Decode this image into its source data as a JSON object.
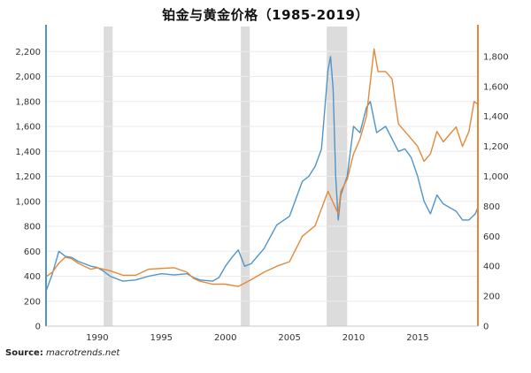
{
  "chart_data": {
    "type": "line",
    "title": "铂金与黄金价格（1985-2019）",
    "xlabel": "",
    "ylabel": "",
    "x_range": [
      1986.0,
      2019.7
    ],
    "x_ticks": [
      1990,
      1995,
      2000,
      2005,
      2010,
      2015
    ],
    "left_axis": {
      "range": [
        0,
        2400
      ],
      "ticks": [
        0,
        200,
        400,
        600,
        800,
        1000,
        1200,
        1400,
        1600,
        1800,
        2000,
        2200
      ],
      "tick_labels": [
        "0",
        "200",
        "400",
        "600",
        "800",
        "1,000",
        "1,200",
        "1,400",
        "1,600",
        "1,800",
        "2,000",
        "2,200"
      ],
      "color": "#4f95c8"
    },
    "right_axis": {
      "range": [
        0,
        2000
      ],
      "ticks": [
        0,
        200,
        400,
        600,
        800,
        1000,
        1200,
        1400,
        1600,
        1800
      ],
      "tick_labels": [
        "0",
        "200",
        "400",
        "600",
        "800",
        "1,000",
        "1,200",
        "1,400",
        "1,600",
        "1,800"
      ],
      "color": "#e5883a"
    },
    "grid": true,
    "legend": "none",
    "recession_bands": [
      [
        1990.5,
        1991.2
      ],
      [
        2001.2,
        2001.9
      ],
      [
        2007.9,
        2009.5
      ]
    ],
    "series": [
      {
        "axis": "left",
        "color": "#4f95c8",
        "x": [
          1986.0,
          1986.5,
          1987.0,
          1987.5,
          1988.0,
          1988.5,
          1989.0,
          1989.5,
          1990.0,
          1990.5,
          1991.0,
          1991.5,
          1992.0,
          1993.0,
          1994.0,
          1995.0,
          1996.0,
          1997.0,
          1997.5,
          1998.0,
          1999.0,
          1999.5,
          2000.0,
          2000.5,
          2001.0,
          2001.5,
          2002.0,
          2002.5,
          2003.0,
          2004.0,
          2005.0,
          2006.0,
          2006.5,
          2007.0,
          2007.5,
          2008.0,
          2008.2,
          2008.4,
          2008.6,
          2008.8,
          2009.0,
          2009.5,
          2010.0,
          2010.5,
          2011.0,
          2011.3,
          2011.8,
          2012.5,
          2013.0,
          2013.5,
          2014.0,
          2014.5,
          2015.0,
          2015.5,
          2016.0,
          2016.5,
          2017.0,
          2017.5,
          2018.0,
          2018.5,
          2019.0,
          2019.5,
          2019.7
        ],
        "values": [
          280,
          420,
          600,
          560,
          550,
          520,
          500,
          480,
          470,
          440,
          400,
          380,
          360,
          370,
          400,
          420,
          410,
          420,
          390,
          370,
          360,
          390,
          480,
          550,
          610,
          480,
          500,
          560,
          620,
          810,
          880,
          1160,
          1200,
          1280,
          1420,
          2050,
          2160,
          1900,
          1200,
          850,
          1050,
          1200,
          1600,
          1550,
          1750,
          1800,
          1550,
          1600,
          1500,
          1400,
          1420,
          1350,
          1200,
          1000,
          900,
          1050,
          980,
          950,
          920,
          850,
          850,
          900,
          950
        ]
      },
      {
        "axis": "right",
        "color": "#e5883a",
        "x": [
          1986.0,
          1986.5,
          1987.0,
          1987.5,
          1988.0,
          1988.5,
          1989.0,
          1989.5,
          1990.0,
          1991.0,
          1992.0,
          1993.0,
          1994.0,
          1995.0,
          1996.0,
          1997.0,
          1997.5,
          1998.0,
          1999.0,
          1999.5,
          2000.0,
          2001.0,
          2002.0,
          2003.0,
          2004.0,
          2005.0,
          2006.0,
          2007.0,
          2008.0,
          2008.8,
          2009.0,
          2009.5,
          2010.0,
          2010.5,
          2011.0,
          2011.6,
          2011.9,
          2012.5,
          2013.0,
          2013.5,
          2014.0,
          2015.0,
          2015.5,
          2016.0,
          2016.5,
          2017.0,
          2017.5,
          2018.0,
          2018.5,
          2019.0,
          2019.4,
          2019.7
        ],
        "values": [
          330,
          360,
          420,
          460,
          450,
          420,
          400,
          380,
          390,
          370,
          340,
          340,
          380,
          385,
          390,
          360,
          320,
          300,
          280,
          280,
          280,
          265,
          310,
          360,
          400,
          430,
          600,
          670,
          900,
          750,
          900,
          980,
          1150,
          1250,
          1400,
          1850,
          1700,
          1700,
          1650,
          1350,
          1300,
          1200,
          1100,
          1150,
          1300,
          1230,
          1280,
          1330,
          1200,
          1300,
          1500,
          1480
        ]
      }
    ],
    "source_label": "Source:",
    "source_site": "macrotrends.net"
  }
}
